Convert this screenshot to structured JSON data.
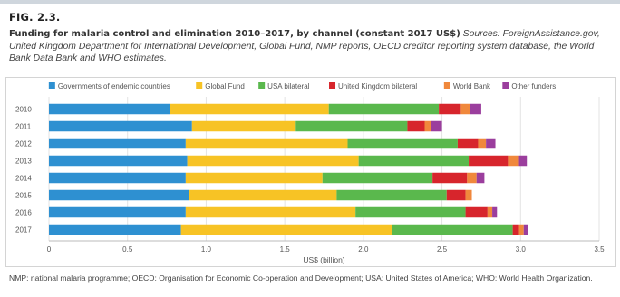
{
  "figure": {
    "label": "FIG. 2.3.",
    "title": "Funding for malaria control and elimination 2010–2017, by channel (constant 2017 US$)",
    "sources": "Sources: ForeignAssistance.gov, United Kingdom Department for International Development, Global Fund, NMP reports, OECD creditor reporting system database, the World Bank Data Bank and WHO estimates.",
    "footnote": "NMP: national malaria programme; OECD: Organisation for Economic Co-operation and Development; USA: United States of America; WHO: World Health Organization."
  },
  "chart_data": {
    "type": "bar",
    "orientation": "horizontal",
    "stacked": true,
    "categories": [
      "2010",
      "2011",
      "2012",
      "2013",
      "2014",
      "2015",
      "2016",
      "2017"
    ],
    "xlabel": "US$ (billion)",
    "xlim": [
      0,
      3.5
    ],
    "xticks": [
      "0",
      "0.5",
      "1.0",
      "1.5",
      "2.0",
      "2.5",
      "3.0",
      "3.5"
    ],
    "grid": true,
    "legend_position": "top",
    "series": [
      {
        "name": "Governments of endemic countries",
        "color": "#2e90d1",
        "values": [
          0.77,
          0.91,
          0.87,
          0.88,
          0.87,
          0.89,
          0.87,
          0.84
        ]
      },
      {
        "name": "Global Fund",
        "color": "#f7c325",
        "values": [
          1.01,
          0.66,
          1.03,
          1.09,
          0.87,
          0.94,
          1.08,
          1.34
        ]
      },
      {
        "name": "USA bilateral",
        "color": "#5ab84d",
        "values": [
          0.7,
          0.71,
          0.7,
          0.7,
          0.7,
          0.7,
          0.7,
          0.77
        ]
      },
      {
        "name": "United Kingdom bilateral",
        "color": "#d7252c",
        "values": [
          0.14,
          0.11,
          0.13,
          0.25,
          0.22,
          0.12,
          0.14,
          0.04
        ]
      },
      {
        "name": "World Bank",
        "color": "#f0883c",
        "values": [
          0.06,
          0.04,
          0.05,
          0.07,
          0.06,
          0.04,
          0.03,
          0.03
        ]
      },
      {
        "name": "Other funders",
        "color": "#9b3e9d",
        "values": [
          0.07,
          0.07,
          0.06,
          0.05,
          0.05,
          0.0,
          0.03,
          0.03
        ]
      }
    ]
  }
}
